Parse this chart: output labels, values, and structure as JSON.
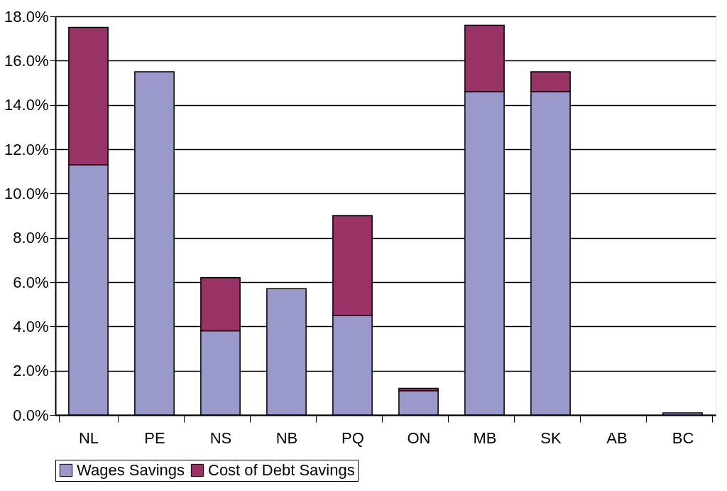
{
  "chart_data": {
    "type": "bar",
    "stacked": true,
    "categories": [
      "NL",
      "PE",
      "NS",
      "NB",
      "PQ",
      "ON",
      "MB",
      "SK",
      "AB",
      "BC"
    ],
    "series": [
      {
        "name": "Wages Savings",
        "color": "#9999cc",
        "values": [
          11.3,
          15.5,
          3.8,
          5.7,
          4.5,
          1.1,
          14.6,
          14.6,
          null,
          0.1
        ]
      },
      {
        "name": "Cost of Debt Savings",
        "color": "#993366",
        "values": [
          6.2,
          null,
          2.4,
          null,
          4.5,
          0.1,
          3.0,
          0.9,
          null,
          null
        ]
      }
    ],
    "ylim": [
      0,
      18
    ],
    "yticks": [
      {
        "value": 0,
        "label": "0.0%"
      },
      {
        "value": 2,
        "label": "2.0%"
      },
      {
        "value": 4,
        "label": "4.0%"
      },
      {
        "value": 6,
        "label": "6.0%"
      },
      {
        "value": 8,
        "label": "8.0%"
      },
      {
        "value": 10,
        "label": "10.0%"
      },
      {
        "value": 12,
        "label": "12.0%"
      },
      {
        "value": 14,
        "label": "14.0%"
      },
      {
        "value": 16,
        "label": "16.0%"
      },
      {
        "value": 18,
        "label": "18.0%"
      }
    ],
    "grid": "y",
    "legend": "bottom"
  }
}
